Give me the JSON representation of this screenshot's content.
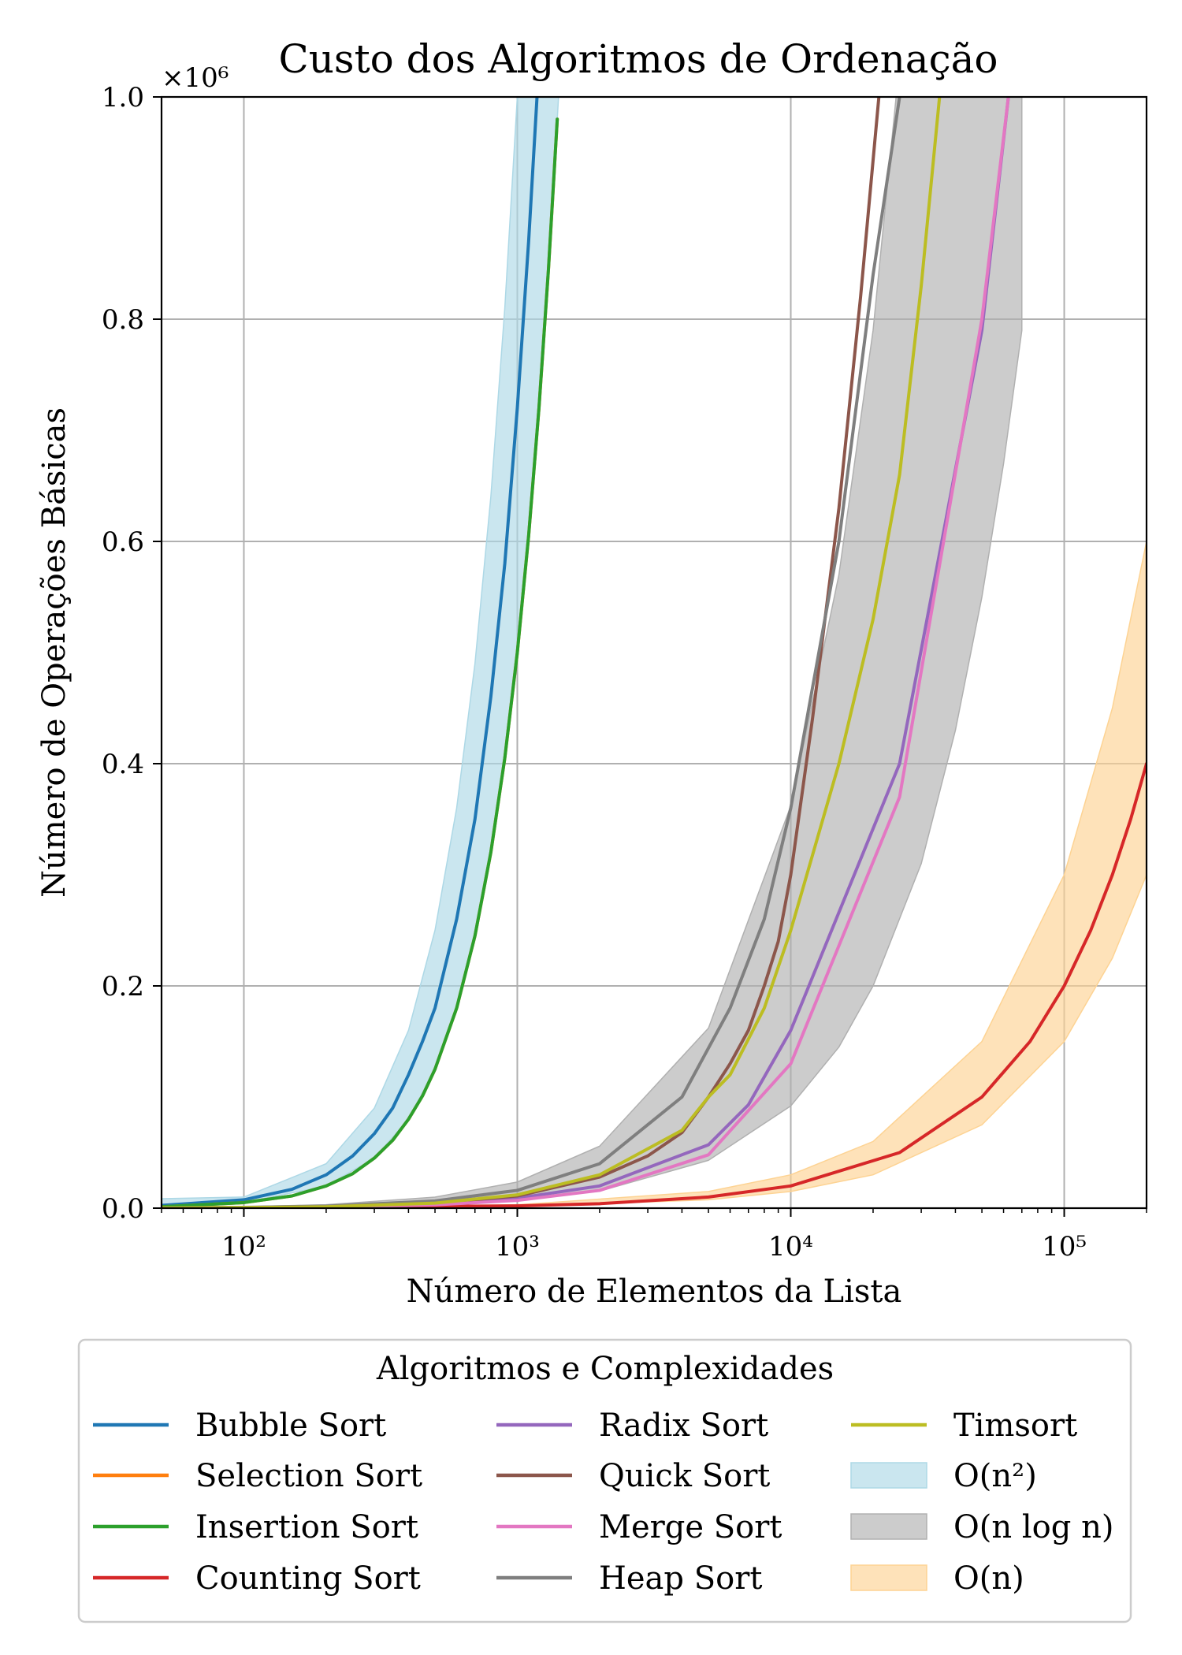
{
  "chart_data": {
    "type": "line",
    "title": "Custo dos Algoritmos de Ordenação",
    "xlabel": "Número de Elementos da Lista",
    "ylabel": "Número de Operações Básicas",
    "y_multiplier_label": "×10⁶",
    "x_scale": "log",
    "xlim": [
      50,
      200000
    ],
    "ylim": [
      0,
      1.0
    ],
    "x_ticks": [
      {
        "value": 100,
        "label": "10²"
      },
      {
        "value": 1000,
        "label": "10³"
      },
      {
        "value": 10000,
        "label": "10⁴"
      },
      {
        "value": 100000,
        "label": "10⁵"
      }
    ],
    "y_ticks": [
      {
        "value": 0.0,
        "label": "0.0"
      },
      {
        "value": 0.2,
        "label": "0.2"
      },
      {
        "value": 0.4,
        "label": "0.4"
      },
      {
        "value": 0.6,
        "label": "0.6"
      },
      {
        "value": 0.8,
        "label": "0.8"
      },
      {
        "value": 1.0,
        "label": "1.0"
      }
    ],
    "grid": true,
    "legend_title": "Algoritmos e Complexidades",
    "legend_placement": "below",
    "bands": [
      {
        "name": "O(n²)",
        "color": "#add8e6",
        "x": [
          50,
          100,
          200,
          300,
          400,
          500,
          600,
          700,
          800,
          900,
          1000,
          1200,
          1400,
          1600,
          1800,
          2000
        ],
        "lower": [
          0.0018,
          0.005,
          0.02,
          0.045,
          0.08,
          0.125,
          0.18,
          0.245,
          0.32,
          0.405,
          0.5,
          0.72,
          0.98,
          1.28,
          1.62,
          2.0
        ],
        "upper": [
          0.0085,
          0.01,
          0.04,
          0.09,
          0.16,
          0.25,
          0.36,
          0.49,
          0.64,
          0.81,
          1.0,
          1.44,
          1.96,
          2.56,
          3.24,
          4.0
        ]
      },
      {
        "name": "O(n log n)",
        "color": "#b0b0b0",
        "x": [
          50,
          100,
          200,
          500,
          1000,
          2000,
          5000,
          10000,
          15000,
          20000,
          30000,
          40000,
          50000,
          60000,
          70000
        ],
        "lower": [
          0.0002,
          0.0005,
          0.0011,
          0.0031,
          0.0069,
          0.0153,
          0.043,
          0.092,
          0.145,
          0.2,
          0.31,
          0.43,
          0.55,
          0.67,
          0.79
        ],
        "upper": [
          0.0004,
          0.0013,
          0.0031,
          0.0099,
          0.0235,
          0.0558,
          0.162,
          0.362,
          0.57,
          0.79,
          1.24,
          1.71,
          2.2,
          2.68,
          3.17
        ]
      },
      {
        "name": "O(n)",
        "color": "#fdd393",
        "x": [
          50,
          1000,
          5000,
          10000,
          20000,
          50000,
          100000,
          150000,
          200000
        ],
        "lower": [
          0.0001,
          0.0015,
          0.0075,
          0.015,
          0.03,
          0.075,
          0.15,
          0.225,
          0.3
        ],
        "upper": [
          0.00015,
          0.003,
          0.015,
          0.03,
          0.06,
          0.15,
          0.3,
          0.45,
          0.6
        ]
      }
    ],
    "series": [
      {
        "name": "Bubble Sort",
        "color": "#1f77b4",
        "x": [
          50,
          100,
          150,
          200,
          250,
          300,
          350,
          400,
          450,
          500,
          600,
          700,
          800,
          900,
          1000,
          1100,
          1200
        ],
        "values": [
          0.0025,
          0.0075,
          0.017,
          0.03,
          0.047,
          0.067,
          0.09,
          0.12,
          0.15,
          0.18,
          0.26,
          0.35,
          0.46,
          0.58,
          0.72,
          0.87,
          1.03
        ]
      },
      {
        "name": "Selection Sort",
        "color": "#ff7f0e",
        "x": [
          50,
          100,
          150,
          200,
          250,
          300,
          350,
          400,
          450,
          500,
          600,
          700,
          800,
          900,
          1000,
          1100,
          1200,
          1300,
          1400
        ],
        "values": [
          0.0012,
          0.005,
          0.011,
          0.02,
          0.031,
          0.045,
          0.061,
          0.08,
          0.101,
          0.125,
          0.18,
          0.245,
          0.32,
          0.405,
          0.5,
          0.605,
          0.72,
          0.845,
          0.98
        ]
      },
      {
        "name": "Insertion Sort",
        "color": "#2ca02c",
        "x": [
          50,
          100,
          150,
          200,
          250,
          300,
          350,
          400,
          450,
          500,
          600,
          700,
          800,
          900,
          1000,
          1100,
          1200,
          1300,
          1400
        ],
        "values": [
          0.0012,
          0.005,
          0.011,
          0.02,
          0.031,
          0.045,
          0.061,
          0.08,
          0.101,
          0.125,
          0.18,
          0.245,
          0.32,
          0.405,
          0.5,
          0.605,
          0.72,
          0.845,
          0.98
        ]
      },
      {
        "name": "Counting Sort",
        "color": "#d62728",
        "x": [
          50,
          1000,
          2000,
          5000,
          10000,
          25000,
          50000,
          75000,
          100000,
          125000,
          150000,
          175000,
          200000
        ],
        "values": [
          0.0001,
          0.002,
          0.004,
          0.01,
          0.02,
          0.05,
          0.1,
          0.15,
          0.2,
          0.25,
          0.3,
          0.35,
          0.4
        ]
      },
      {
        "name": "Radix Sort",
        "color": "#9467bd",
        "x": [
          50,
          100,
          200,
          500,
          1000,
          2000,
          5000,
          7000,
          10000,
          25000,
          50000,
          62500
        ],
        "values": [
          0.0002,
          0.0006,
          0.0012,
          0.004,
          0.009,
          0.02,
          0.057,
          0.093,
          0.16,
          0.4,
          0.79,
          1.0
        ]
      },
      {
        "name": "Quick Sort",
        "color": "#8c564b",
        "x": [
          50,
          100,
          200,
          500,
          1000,
          2000,
          3000,
          4000,
          5000,
          6000,
          7000,
          8000,
          9000,
          10000,
          12000,
          15000,
          18000,
          21000
        ],
        "values": [
          0.0002,
          0.0005,
          0.0013,
          0.0045,
          0.011,
          0.028,
          0.047,
          0.068,
          0.1,
          0.13,
          0.16,
          0.2,
          0.24,
          0.3,
          0.44,
          0.63,
          0.82,
          1.0
        ]
      },
      {
        "name": "Merge Sort",
        "color": "#e377c2",
        "x": [
          50,
          100,
          200,
          500,
          1000,
          2000,
          5000,
          10000,
          25000,
          50000,
          62500
        ],
        "values": [
          0.0001,
          0.0004,
          0.001,
          0.003,
          0.007,
          0.016,
          0.048,
          0.13,
          0.37,
          0.8,
          1.0
        ]
      },
      {
        "name": "Heap Sort",
        "color": "#7f7f7f",
        "x": [
          50,
          100,
          200,
          500,
          1000,
          2000,
          4000,
          6000,
          8000,
          10000,
          15000,
          20000,
          25000
        ],
        "values": [
          0.0003,
          0.0007,
          0.0018,
          0.0065,
          0.016,
          0.04,
          0.1,
          0.18,
          0.26,
          0.36,
          0.6,
          0.84,
          1.0
        ]
      },
      {
        "name": "Timsort",
        "color": "#bcbd22",
        "x": [
          50,
          100,
          200,
          500,
          1000,
          2000,
          4000,
          5000,
          6000,
          8000,
          10000,
          15000,
          20000,
          25000,
          30000,
          35000
        ],
        "values": [
          0.0002,
          0.0005,
          0.0012,
          0.0045,
          0.012,
          0.03,
          0.07,
          0.1,
          0.12,
          0.18,
          0.25,
          0.4,
          0.53,
          0.66,
          0.83,
          1.0
        ]
      }
    ],
    "legend_columns": [
      [
        "Bubble Sort",
        "Selection Sort",
        "Insertion Sort",
        "Counting Sort"
      ],
      [
        "Radix Sort",
        "Quick Sort",
        "Merge Sort",
        "Heap Sort"
      ],
      [
        "Timsort",
        "O(n²)",
        "O(n log n)",
        "O(n)"
      ]
    ]
  }
}
